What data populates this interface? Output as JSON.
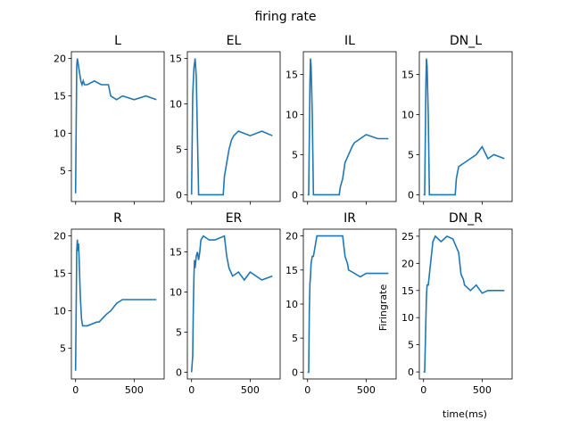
{
  "chart_data": {
    "type": "line",
    "title": "firing rate",
    "colors": {
      "line": "#1f77b4",
      "axes": "#000000",
      "background": "#ffffff"
    },
    "xlabel": "time(ms)",
    "ylabel": "Firingrate",
    "grid": false,
    "subplots": [
      {
        "title": "L",
        "xlim": [
          -36,
          756
        ],
        "ylim": [
          0.9,
          20.9
        ],
        "xticks": [
          0,
          500
        ],
        "show_xtick_labels": false,
        "yticks": [
          5,
          10,
          15,
          20
        ],
        "x": [
          0,
          10,
          15,
          25,
          35,
          45,
          55,
          65,
          75,
          100,
          160,
          220,
          280,
          300,
          350,
          400,
          500,
          600,
          690
        ],
        "y": [
          2,
          19,
          20,
          19,
          18,
          17,
          16.5,
          17,
          16.5,
          16.5,
          17,
          16.5,
          16.5,
          15,
          14.5,
          15,
          14.5,
          15,
          14.5
        ]
      },
      {
        "title": "EL",
        "xlim": [
          -36,
          756
        ],
        "ylim": [
          -0.75,
          15.75
        ],
        "xticks": [
          0,
          500
        ],
        "show_xtick_labels": false,
        "yticks": [
          0,
          5,
          10,
          15
        ],
        "x": [
          0,
          10,
          20,
          30,
          40,
          45,
          60,
          100,
          200,
          270,
          280,
          300,
          320,
          340,
          360,
          400,
          500,
          600,
          690
        ],
        "y": [
          0,
          11,
          14,
          15,
          13,
          10,
          0,
          0,
          0,
          0,
          2,
          3.5,
          5,
          6,
          6.5,
          7,
          6.5,
          7,
          6.5
        ]
      },
      {
        "title": "IL",
        "xlim": [
          -36,
          756
        ],
        "ylim": [
          -0.85,
          17.85
        ],
        "xticks": [
          0,
          500
        ],
        "show_xtick_labels": false,
        "yticks": [
          0,
          5,
          10,
          15
        ],
        "x": [
          0,
          10,
          20,
          25,
          30,
          40,
          50,
          100,
          200,
          270,
          280,
          300,
          320,
          350,
          380,
          400,
          450,
          500,
          600,
          690
        ],
        "y": [
          0,
          0,
          14,
          17,
          16,
          10,
          0,
          0,
          0,
          0,
          1,
          2,
          4,
          5,
          6,
          6.5,
          7,
          7.5,
          7,
          7
        ]
      },
      {
        "title": "DN_L",
        "xlim": [
          -36,
          756
        ],
        "ylim": [
          -0.85,
          17.85
        ],
        "xticks": [
          0,
          500
        ],
        "show_xtick_labels": false,
        "yticks": [
          0,
          5,
          10,
          15
        ],
        "x": [
          0,
          10,
          20,
          25,
          30,
          40,
          50,
          100,
          200,
          270,
          280,
          300,
          350,
          400,
          450,
          500,
          550,
          600,
          690
        ],
        "y": [
          0,
          0,
          14,
          17,
          16,
          10,
          0,
          0,
          0,
          0,
          2,
          3.5,
          4,
          4.5,
          5,
          6,
          4.5,
          5,
          4.5
        ]
      },
      {
        "title": "R",
        "xlim": [
          -36,
          756
        ],
        "ylim": [
          0.9,
          20.9
        ],
        "xticks": [
          0,
          500
        ],
        "yticks": [
          5,
          10,
          15,
          20
        ],
        "x": [
          0,
          10,
          15,
          20,
          25,
          30,
          40,
          50,
          60,
          100,
          180,
          200,
          260,
          300,
          350,
          400,
          500,
          600,
          690
        ],
        "y": [
          2,
          18,
          19.5,
          18,
          19,
          17,
          12,
          9,
          8,
          8,
          8.5,
          8.5,
          9.5,
          10,
          11,
          11.5,
          11.5,
          11.5,
          11.5
        ]
      },
      {
        "title": "ER",
        "xlim": [
          -36,
          756
        ],
        "ylim": [
          -0.85,
          17.85
        ],
        "xticks": [
          0,
          500
        ],
        "yticks": [
          0,
          5,
          10,
          15
        ],
        "x": [
          0,
          10,
          15,
          20,
          25,
          30,
          40,
          50,
          60,
          70,
          80,
          100,
          150,
          200,
          280,
          300,
          320,
          350,
          400,
          450,
          500,
          600,
          690
        ],
        "y": [
          0,
          2,
          8,
          12,
          14,
          13,
          14.5,
          15,
          14,
          15,
          16.5,
          17,
          16.5,
          16.5,
          17,
          14.5,
          13,
          12,
          12.5,
          11.5,
          12.5,
          11.5,
          12
        ]
      },
      {
        "title": "IR",
        "xlim": [
          -36,
          756
        ],
        "ylim": [
          -1.0,
          21.0
        ],
        "xticks": [
          0,
          500
        ],
        "yticks": [
          0,
          5,
          10,
          15,
          20
        ],
        "x": [
          0,
          10,
          15,
          20,
          25,
          30,
          40,
          50,
          60,
          70,
          80,
          100,
          150,
          200,
          280,
          300,
          320,
          340,
          350,
          400,
          450,
          500,
          600,
          690
        ],
        "y": [
          0,
          0,
          9,
          13,
          14,
          16,
          17,
          17,
          18,
          19,
          20,
          20,
          20,
          20,
          20,
          20,
          17,
          16,
          15,
          14.5,
          14,
          14.5,
          14.5,
          14.5
        ]
      },
      {
        "title": "DN_R",
        "xlim": [
          -36,
          756
        ],
        "ylim": [
          -1.3,
          26.3
        ],
        "xticks": [
          0,
          500
        ],
        "yticks": [
          0,
          5,
          10,
          15,
          20,
          25
        ],
        "x": [
          0,
          10,
          20,
          25,
          30,
          40,
          50,
          60,
          70,
          80,
          100,
          150,
          200,
          250,
          300,
          320,
          340,
          350,
          400,
          450,
          500,
          550,
          600,
          690
        ],
        "y": [
          0,
          0,
          10,
          14,
          16,
          16,
          18,
          20,
          22,
          24,
          25,
          24,
          25,
          24.5,
          22,
          18,
          17,
          16,
          15,
          16,
          14.5,
          15,
          15,
          15
        ]
      }
    ]
  }
}
